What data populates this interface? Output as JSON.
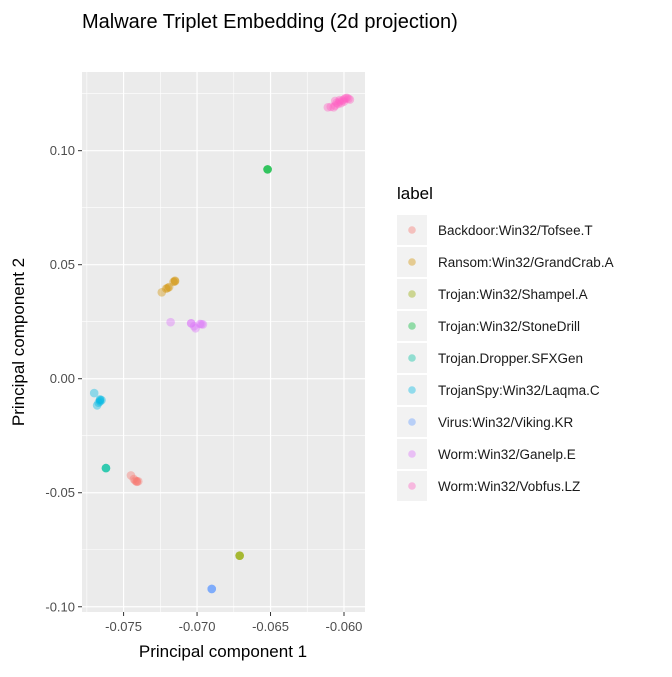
{
  "chart_data": {
    "type": "scatter",
    "title": "Malware Triplet Embedding (2d projection)",
    "xlabel": "Principal component 1",
    "ylabel": "Principal component 2",
    "xlim": [
      -0.07783,
      -0.05857
    ],
    "ylim": [
      -0.1023,
      0.1345
    ],
    "xticks": [
      -0.075,
      -0.07,
      -0.065,
      -0.06
    ],
    "xtick_labels": [
      "-0.075",
      "-0.070",
      "-0.065",
      "-0.060"
    ],
    "yticks": [
      -0.1,
      -0.05,
      0.0,
      0.05,
      0.1
    ],
    "ytick_labels": [
      "-0.10",
      "-0.05",
      "0.00",
      "0.05",
      "0.10"
    ],
    "grid": true,
    "legend_title": "label",
    "legend_position": "right",
    "series": [
      {
        "name": "Backdoor:Win32/Tofsee.T",
        "color": "#F8766D",
        "points": [
          [
            -0.0745,
            -0.0424
          ],
          [
            -0.0743,
            -0.044
          ],
          [
            -0.0742,
            -0.0447
          ],
          [
            -0.0741,
            -0.045
          ],
          [
            -0.0741,
            -0.0452
          ],
          [
            -0.074,
            -0.045
          ]
        ]
      },
      {
        "name": "Ransom:Win32/GrandCrab.A",
        "color": "#D39200",
        "points": [
          [
            -0.0724,
            0.0379
          ],
          [
            -0.0721,
            0.0395
          ],
          [
            -0.072,
            0.0398
          ],
          [
            -0.0719,
            0.0402
          ],
          [
            -0.0716,
            0.0425
          ],
          [
            -0.0715,
            0.043
          ],
          [
            -0.0715,
            0.0427
          ]
        ]
      },
      {
        "name": "Trojan:Win32/Shampel.A",
        "color": "#93AA00",
        "points": [
          [
            -0.0671,
            -0.0776
          ],
          [
            -0.0671,
            -0.0776
          ],
          [
            -0.0671,
            -0.0776
          ]
        ]
      },
      {
        "name": "Trojan:Win32/StoneDrill",
        "color": "#00BA38",
        "points": [
          [
            -0.0652,
            0.0918
          ],
          [
            -0.0652,
            0.0918
          ],
          [
            -0.0652,
            0.0918
          ]
        ]
      },
      {
        "name": "Trojan.Dropper.SFXGen",
        "color": "#00C19F",
        "points": [
          [
            -0.0762,
            -0.0392
          ],
          [
            -0.0762,
            -0.0392
          ],
          [
            -0.0762,
            -0.0392
          ]
        ]
      },
      {
        "name": "TrojanSpy:Win32/Laqma.C",
        "color": "#00B9E3",
        "points": [
          [
            -0.077,
            -0.0063
          ],
          [
            -0.0768,
            -0.0117
          ],
          [
            -0.0766,
            -0.0094
          ],
          [
            -0.0766,
            -0.01
          ],
          [
            -0.0765,
            -0.0094
          ],
          [
            -0.0766,
            -0.009
          ],
          [
            -0.0767,
            -0.0105
          ]
        ]
      },
      {
        "name": "Virus:Win32/Viking.KR",
        "color": "#619CFF",
        "points": [
          [
            -0.069,
            -0.0922
          ],
          [
            -0.069,
            -0.0922
          ],
          [
            -0.069,
            -0.0922
          ]
        ]
      },
      {
        "name": "Worm:Win32/Ganelp.E",
        "color": "#DB72FB",
        "points": [
          [
            -0.0718,
            0.0248
          ],
          [
            -0.0704,
            0.0243
          ],
          [
            -0.0704,
            0.0243
          ],
          [
            -0.0702,
            0.023
          ],
          [
            -0.0701,
            0.0221
          ],
          [
            -0.0697,
            0.0239
          ],
          [
            -0.0696,
            0.0238
          ],
          [
            -0.0698,
            0.024
          ]
        ]
      },
      {
        "name": "Worm:Win32/Vobfus.LZ",
        "color": "#FF61C3",
        "points": [
          [
            -0.0611,
            0.119
          ],
          [
            -0.0609,
            0.1192
          ],
          [
            -0.0607,
            0.119
          ],
          [
            -0.0606,
            0.1198
          ],
          [
            -0.0605,
            0.121
          ],
          [
            -0.0604,
            0.1205
          ],
          [
            -0.0603,
            0.1215
          ],
          [
            -0.0602,
            0.1208
          ],
          [
            -0.0601,
            0.122
          ],
          [
            -0.06,
            0.1225
          ],
          [
            -0.06,
            0.1215
          ],
          [
            -0.0599,
            0.123
          ],
          [
            -0.0598,
            0.1232
          ],
          [
            -0.0597,
            0.1228
          ],
          [
            -0.0596,
            0.1224
          ],
          [
            -0.0603,
            0.1222
          ],
          [
            -0.0606,
            0.1218
          ]
        ]
      }
    ]
  }
}
